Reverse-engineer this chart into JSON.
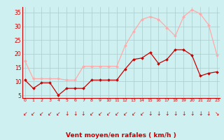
{
  "hours": [
    0,
    1,
    2,
    3,
    4,
    5,
    6,
    7,
    8,
    9,
    10,
    11,
    12,
    13,
    14,
    15,
    16,
    17,
    18,
    19,
    20,
    21,
    22,
    23
  ],
  "wind_avg": [
    10.5,
    7.5,
    9.5,
    9.5,
    5.0,
    7.5,
    7.5,
    7.5,
    10.5,
    10.5,
    10.5,
    10.5,
    14.5,
    18.0,
    18.5,
    20.5,
    16.5,
    18.0,
    21.5,
    21.5,
    19.5,
    12.0,
    13.0,
    13.5
  ],
  "wind_gust": [
    17.5,
    11.0,
    11.0,
    11.0,
    11.0,
    10.5,
    10.5,
    15.5,
    15.5,
    15.5,
    15.5,
    15.5,
    23.0,
    28.0,
    32.5,
    33.5,
    32.5,
    29.5,
    26.5,
    33.5,
    36.0,
    34.5,
    30.5,
    19.5
  ],
  "avg_color": "#cc0000",
  "gust_color": "#ffaaaa",
  "bg_color": "#cff0f0",
  "grid_color": "#aacccc",
  "xlabel": "Vent moyen/en rafales ( km/h )",
  "xlabel_color": "#cc0000",
  "tick_color": "#cc0000",
  "spine_color": "#cc0000",
  "ylim": [
    4,
    37
  ],
  "yticks": [
    5,
    10,
    15,
    20,
    25,
    30,
    35
  ],
  "marker": "D",
  "marker_size": 2.0,
  "arrow_chars": [
    "↙",
    "↙",
    "↙",
    "↙",
    "↙",
    "↓",
    "↓",
    "↓",
    "↙",
    "↙",
    "↙",
    "↙",
    "↙",
    "↙",
    "↙",
    "↓",
    "↓",
    "↓",
    "↓",
    "↓",
    "↓",
    "↓",
    "↓",
    "↘"
  ]
}
